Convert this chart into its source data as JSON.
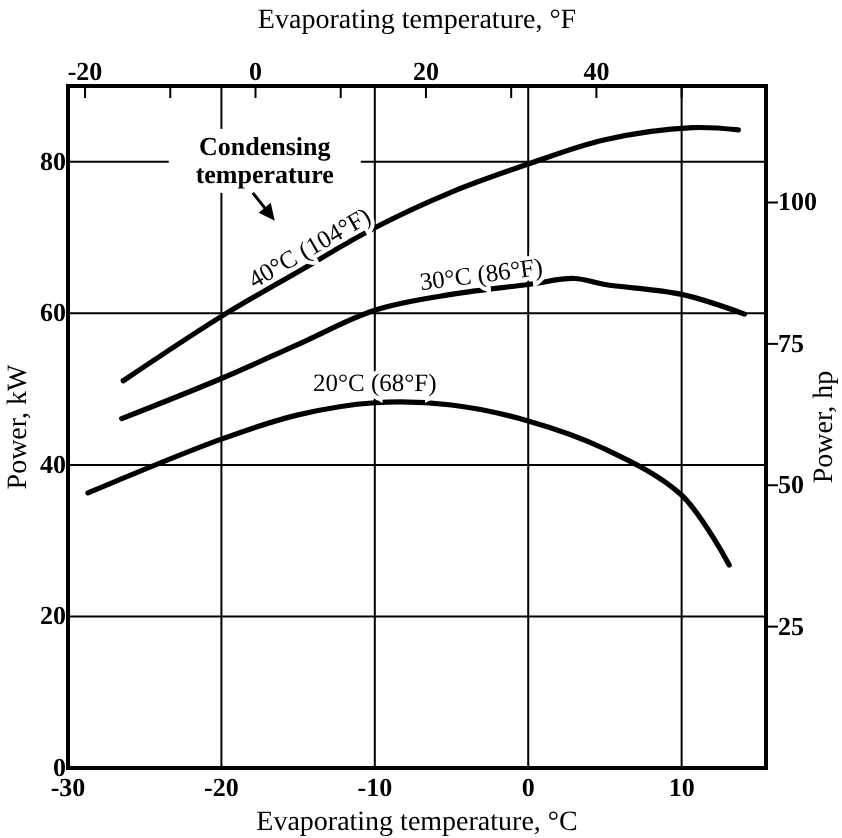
{
  "chart_data": {
    "type": "line",
    "xlabel": "Evaporating temperature, °C",
    "x2label": "Evaporating temperature, °F",
    "ylabel": "Power, kW",
    "y2label": "Power, hp",
    "xlim": [
      -30,
      15.5
    ],
    "xticks": [
      -30,
      -20,
      -10,
      0,
      10
    ],
    "x2lim": [
      -22,
      59.9
    ],
    "x2ticks": [
      -20,
      {
        "value": -10,
        "label": null
      },
      0,
      {
        "value": 10,
        "label": null
      },
      20,
      {
        "value": 30,
        "label": null
      },
      40,
      {
        "value": 50,
        "label": null
      }
    ],
    "ylim": [
      0,
      90
    ],
    "yticks": [
      0,
      20,
      40,
      60,
      80
    ],
    "y2lim": [
      0,
      120.6
    ],
    "y2ticks": [
      25,
      50,
      75,
      100
    ],
    "grid": true,
    "marker": "none",
    "line_style": "solid",
    "series": [
      {
        "name": "40°C (104°F)",
        "color": "#000000",
        "x": [
          -26.4,
          -20,
          -15,
          -10,
          -5,
          0,
          5,
          10.7,
          13.7
        ],
        "values": [
          51.1,
          59.6,
          65.5,
          71.3,
          76.0,
          79.7,
          82.9,
          84.5,
          84.2
        ]
      },
      {
        "name": "30°C (86°F)",
        "color": "#000000",
        "x": [
          -26.5,
          -20,
          -15,
          -10,
          -5,
          0,
          3,
          5,
          10,
          14.1
        ],
        "values": [
          46.1,
          51.4,
          55.9,
          60.4,
          62.5,
          63.8,
          64.6,
          63.8,
          62.5,
          59.9
        ]
      },
      {
        "name": "20°C (68°F)",
        "color": "#000000",
        "x": [
          -28.7,
          -20,
          -15,
          -10,
          -5,
          0,
          5,
          10,
          13.1
        ],
        "values": [
          36.3,
          43.4,
          46.6,
          48.2,
          47.9,
          45.8,
          42.1,
          36.0,
          26.8
        ]
      }
    ],
    "annotations": [
      "Condensing temperature"
    ]
  }
}
